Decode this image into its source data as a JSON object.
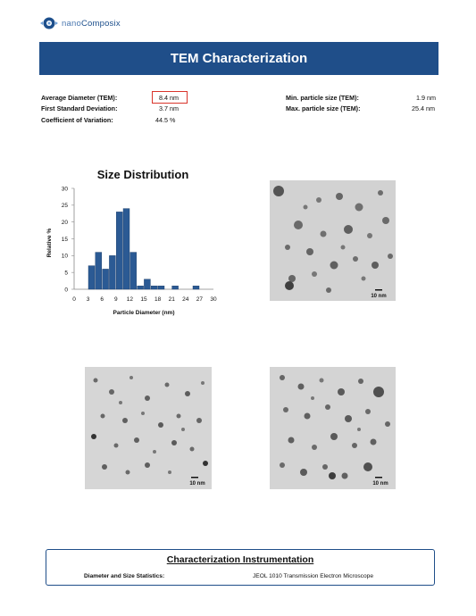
{
  "header": {
    "logo_text_prefix": "nano",
    "logo_text_suffix": "Composix",
    "title": "TEM Characterization"
  },
  "stats": {
    "left": [
      {
        "label": "Average Diameter (TEM):",
        "value": "8.4  nm"
      },
      {
        "label": "First Standard Deviation:",
        "value": "3.7  nm"
      },
      {
        "label": "Coefficient of Variation:",
        "value": "44.5  %"
      }
    ],
    "right": [
      {
        "label": "Min. particle size (TEM):",
        "value": "1.9  nm"
      },
      {
        "label": "Max. particle size (TEM):",
        "value": "25.4  nm"
      }
    ]
  },
  "chart_data": {
    "type": "bar",
    "title": "Size Distribution",
    "xlabel": "Particle Diameter (nm)",
    "ylabel": "Relative %",
    "x_ticks": [
      0,
      3,
      6,
      9,
      12,
      15,
      18,
      21,
      24,
      27,
      30
    ],
    "y_ticks": [
      0,
      5,
      10,
      15,
      20,
      25,
      30
    ],
    "xlim": [
      0,
      30
    ],
    "ylim": [
      0,
      30
    ],
    "bin_width": 1.5,
    "bars": [
      {
        "x": 3,
        "value": 7
      },
      {
        "x": 4.5,
        "value": 11
      },
      {
        "x": 6,
        "value": 6
      },
      {
        "x": 7.5,
        "value": 10
      },
      {
        "x": 9,
        "value": 23
      },
      {
        "x": 10.5,
        "value": 24
      },
      {
        "x": 12,
        "value": 11
      },
      {
        "x": 13.5,
        "value": 1
      },
      {
        "x": 15,
        "value": 3
      },
      {
        "x": 16.5,
        "value": 1
      },
      {
        "x": 18,
        "value": 1
      },
      {
        "x": 21,
        "value": 1
      },
      {
        "x": 25.5,
        "value": 1
      }
    ],
    "bar_color": "#2b5a94",
    "grid": false
  },
  "images": {
    "scale_label": "10 nm"
  },
  "instrumentation": {
    "title": "Characterization Instrumentation",
    "label": "Diameter and Size Statistics:",
    "value": "JEOL 1010 Transmission Electron Microscope"
  },
  "colors": {
    "banner": "#1f4e89",
    "highlight_box": "#d9342b"
  }
}
